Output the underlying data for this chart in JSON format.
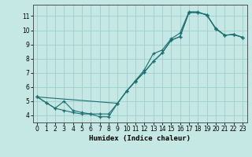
{
  "xlabel": "Humidex (Indice chaleur)",
  "bg_color": "#c5e8e5",
  "grid_color": "#9fcece",
  "line_color": "#1a7070",
  "xlim": [
    -0.5,
    23.5
  ],
  "ylim": [
    3.5,
    11.8
  ],
  "xticks": [
    0,
    1,
    2,
    3,
    4,
    5,
    6,
    7,
    8,
    9,
    10,
    11,
    12,
    13,
    14,
    15,
    16,
    17,
    18,
    19,
    20,
    21,
    22,
    23
  ],
  "yticks": [
    4,
    5,
    6,
    7,
    8,
    9,
    10,
    11
  ],
  "line1_x": [
    0,
    1,
    2,
    3,
    4,
    5,
    6,
    7,
    8,
    9,
    10,
    11,
    12,
    13,
    14,
    15,
    16,
    17,
    18,
    19,
    20,
    21,
    22,
    23
  ],
  "line1_y": [
    5.3,
    4.9,
    4.5,
    4.35,
    4.2,
    4.1,
    4.1,
    4.1,
    4.1,
    4.85,
    5.7,
    6.4,
    7.05,
    7.8,
    8.4,
    9.3,
    9.55,
    11.25,
    11.25,
    11.1,
    10.1,
    9.65,
    9.7,
    9.5
  ],
  "line2_x": [
    0,
    1,
    2,
    3,
    4,
    5,
    6,
    7,
    8,
    9,
    10,
    11,
    12,
    13,
    14,
    15,
    16,
    17,
    18,
    19,
    20,
    21,
    22,
    23
  ],
  "line2_y": [
    5.3,
    4.9,
    4.5,
    5.0,
    4.35,
    4.2,
    4.1,
    3.9,
    3.9,
    4.85,
    5.7,
    6.45,
    7.2,
    8.35,
    8.6,
    9.4,
    9.8,
    11.3,
    11.3,
    11.05,
    10.15,
    9.65,
    9.7,
    9.5
  ],
  "line3_x": [
    0,
    9,
    10,
    11,
    12,
    13,
    14,
    15,
    16,
    17,
    18,
    19,
    20,
    21,
    22,
    23
  ],
  "line3_y": [
    5.3,
    4.85,
    5.7,
    6.4,
    7.05,
    7.8,
    8.4,
    9.3,
    9.55,
    11.25,
    11.25,
    11.1,
    10.1,
    9.65,
    9.7,
    9.5
  ]
}
